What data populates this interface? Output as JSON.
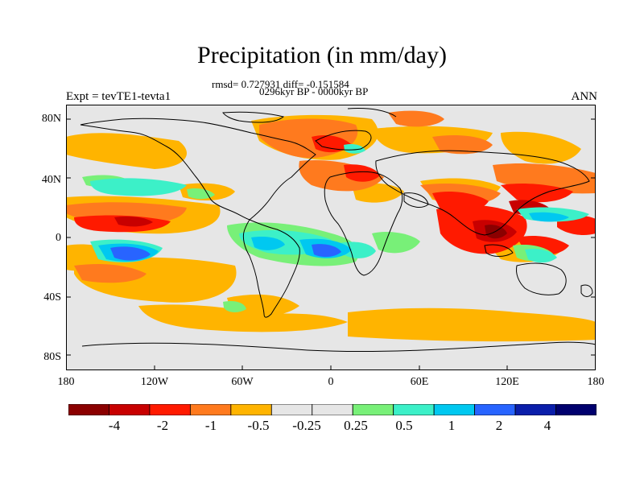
{
  "title": "Precipitation (in mm/day)",
  "stats_line": "rmsd= 0.727931 diff= -0.151584",
  "period_line": "0296kyr BP - 0000kyr BP",
  "left_label": "Expt = tevTE1-tevta1",
  "right_label": "ANN",
  "lat_ticks": [
    "80N",
    "40N",
    "0",
    "40S",
    "80S"
  ],
  "lon_ticks": [
    "180",
    "120W",
    "60W",
    "0",
    "60E",
    "120E",
    "180"
  ],
  "colorbar": {
    "colors": [
      "#8b0000",
      "#c80000",
      "#ff1a00",
      "#ff7a1e",
      "#ffb400",
      "#e6e6e6",
      "#e6e6e6",
      "#78f078",
      "#3cf0c8",
      "#00c8f0",
      "#2864ff",
      "#0a1eaa",
      "#00006e"
    ],
    "labels": [
      "-4",
      "-2",
      "-1",
      "-0.5",
      "-0.25",
      "0.25",
      "0.5",
      "1",
      "2",
      "4"
    ]
  }
}
